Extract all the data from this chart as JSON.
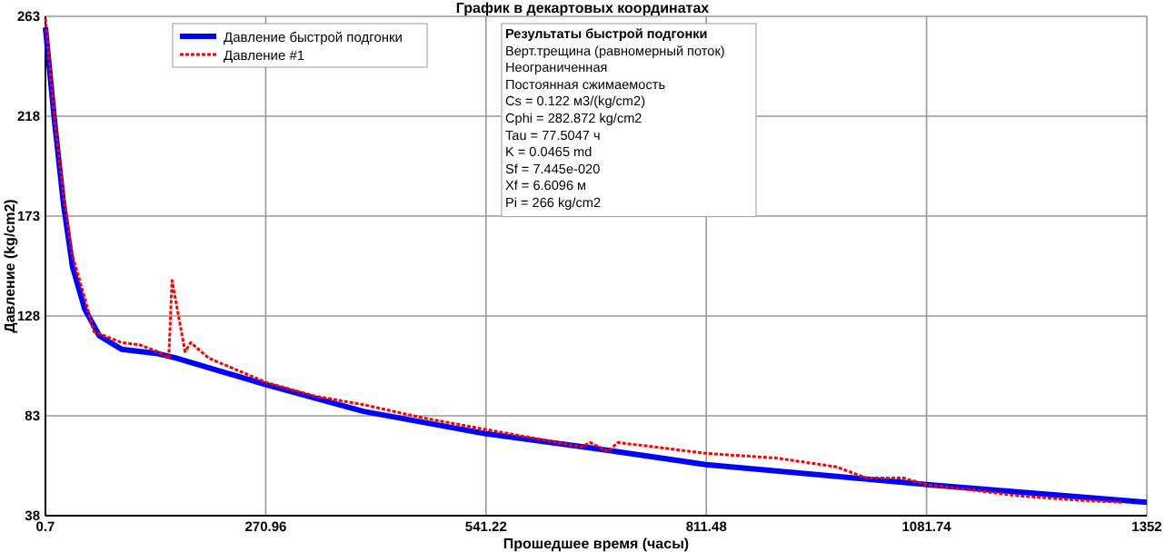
{
  "chart_data": {
    "type": "line",
    "title": "График в декартовых координатах",
    "xlabel": "Прошедшее время (часы)",
    "ylabel": "Давление (kg/cm2)",
    "xlim": [
      0.7,
      1352
    ],
    "xticks": [
      0.7,
      270.96,
      541.22,
      811.48,
      1081.74,
      1352
    ],
    "ylim": [
      38,
      263
    ],
    "yticks": [
      38,
      83,
      128,
      173,
      218,
      263
    ],
    "grid": true,
    "legend": "top left",
    "series": [
      {
        "name": "Давление быстрой подгонки",
        "color": "#0000ff",
        "line_style": "solid",
        "x": [
          0.7,
          11.8,
          23,
          34,
          49,
          67,
          94,
          139,
          161,
          272,
          391,
          540,
          681,
          811,
          1082,
          1352
        ],
        "values": [
          258,
          216,
          178,
          150,
          131,
          119,
          113,
          111,
          109,
          97,
          85,
          75,
          68,
          61,
          52,
          44
        ]
      },
      {
        "name": "Давление #1",
        "color": "#ff0000",
        "line_style": "dotted",
        "x": [
          0.7,
          11.8,
          23,
          34,
          49,
          60,
          94,
          116,
          138,
          152,
          156,
          172,
          179,
          201,
          272,
          330,
          391,
          465,
          539,
          614,
          658,
          669,
          691,
          703,
          814,
          897,
          971,
          1008,
          1053,
          1082,
          1194,
          1268,
          1321
        ],
        "values": [
          262,
          217,
          182,
          155,
          136,
          121,
          116,
          115,
          112,
          109,
          144,
          112,
          116,
          109,
          98,
          92,
          88,
          82,
          77,
          72,
          69,
          71,
          67,
          71,
          66,
          64,
          60,
          55,
          55,
          52,
          47,
          45,
          44
        ]
      }
    ],
    "annotations": [
      "Результаты быстрой подгонки",
      "Верт.трещина (равномерный поток)",
      "Неограниченная",
      "Постоянная сжимаемость",
      "Cs = 0.122 м3/(kg/cm2)",
      "Cphi = 282.872 kg/cm2",
      "Tau = 77.5047 ч",
      "K = 0.0465 md",
      "Sf = 7.445e-020",
      "Xf = 6.6096 м",
      "Pi = 266 kg/cm2"
    ]
  }
}
